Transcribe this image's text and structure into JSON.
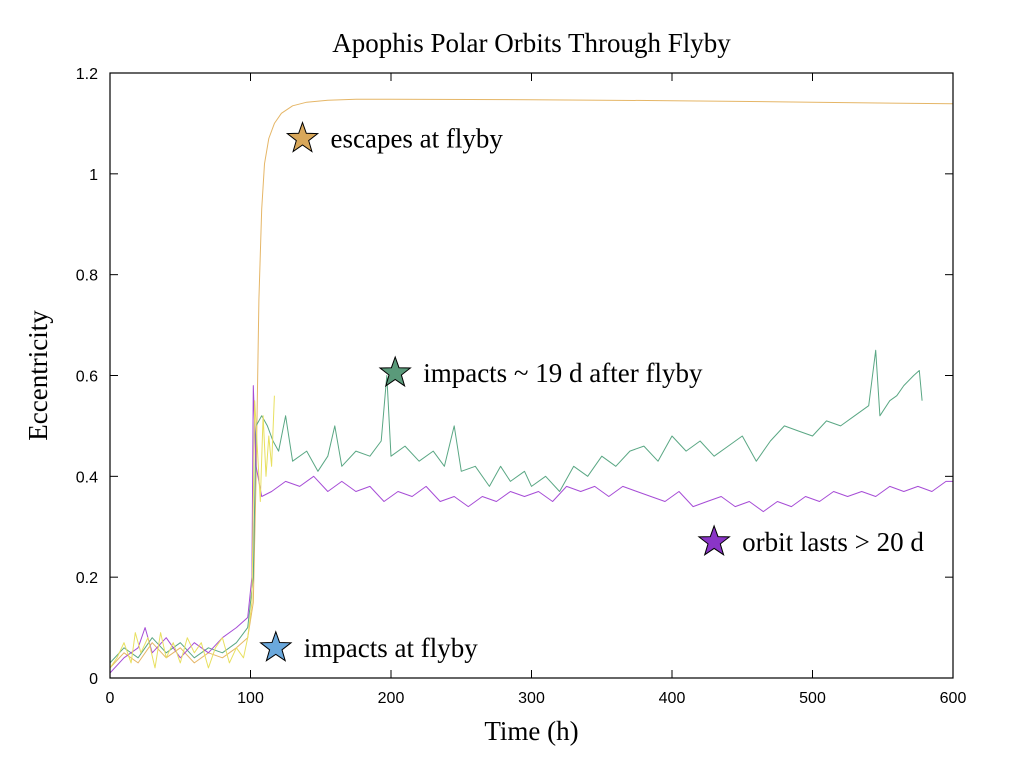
{
  "chart_data": {
    "type": "line",
    "title": "Apophis Polar Orbits Through Flyby",
    "xlabel": "Time (h)",
    "ylabel": "Eccentricity",
    "xlim": [
      0,
      600
    ],
    "ylim": [
      0,
      1.2
    ],
    "x_ticks": [
      0,
      100,
      200,
      300,
      400,
      500,
      600
    ],
    "x_tick_labels": [
      "0",
      "100",
      "200",
      "300",
      "400",
      "500",
      "600"
    ],
    "y_ticks": [
      0,
      0.2,
      0.4,
      0.6,
      0.8,
      1.0,
      1.2
    ],
    "y_tick_labels": [
      "0",
      "0.2",
      "0.4",
      "0.6",
      "0.8",
      "1",
      "1.2"
    ],
    "grid": false,
    "legend": "none",
    "series": [
      {
        "name": "escapes at flyby",
        "color": "#e5b667",
        "points": [
          [
            0,
            0.02
          ],
          [
            10,
            0.05
          ],
          [
            20,
            0.03
          ],
          [
            30,
            0.07
          ],
          [
            40,
            0.04
          ],
          [
            50,
            0.06
          ],
          [
            60,
            0.03
          ],
          [
            70,
            0.05
          ],
          [
            80,
            0.04
          ],
          [
            90,
            0.06
          ],
          [
            98,
            0.08
          ],
          [
            102,
            0.15
          ],
          [
            104,
            0.4
          ],
          [
            106,
            0.75
          ],
          [
            108,
            0.93
          ],
          [
            110,
            1.02
          ],
          [
            113,
            1.07
          ],
          [
            117,
            1.1
          ],
          [
            122,
            1.12
          ],
          [
            130,
            1.135
          ],
          [
            140,
            1.142
          ],
          [
            155,
            1.146
          ],
          [
            175,
            1.148
          ],
          [
            200,
            1.148
          ],
          [
            300,
            1.147
          ],
          [
            400,
            1.145
          ],
          [
            500,
            1.142
          ],
          [
            600,
            1.139
          ]
        ]
      },
      {
        "name": "impacts ~ 19 d after flyby",
        "color": "#5aa784",
        "points": [
          [
            0,
            0.03
          ],
          [
            10,
            0.06
          ],
          [
            20,
            0.04
          ],
          [
            30,
            0.08
          ],
          [
            40,
            0.05
          ],
          [
            50,
            0.07
          ],
          [
            60,
            0.04
          ],
          [
            70,
            0.06
          ],
          [
            80,
            0.05
          ],
          [
            90,
            0.07
          ],
          [
            98,
            0.1
          ],
          [
            102,
            0.2
          ],
          [
            104,
            0.5
          ],
          [
            108,
            0.52
          ],
          [
            112,
            0.5
          ],
          [
            116,
            0.47
          ],
          [
            120,
            0.45
          ],
          [
            125,
            0.52
          ],
          [
            130,
            0.43
          ],
          [
            140,
            0.45
          ],
          [
            148,
            0.41
          ],
          [
            155,
            0.44
          ],
          [
            160,
            0.5
          ],
          [
            165,
            0.42
          ],
          [
            175,
            0.45
          ],
          [
            185,
            0.44
          ],
          [
            193,
            0.47
          ],
          [
            197,
            0.6
          ],
          [
            200,
            0.44
          ],
          [
            210,
            0.46
          ],
          [
            220,
            0.43
          ],
          [
            230,
            0.45
          ],
          [
            238,
            0.42
          ],
          [
            245,
            0.5
          ],
          [
            250,
            0.41
          ],
          [
            260,
            0.42
          ],
          [
            270,
            0.38
          ],
          [
            278,
            0.42
          ],
          [
            285,
            0.39
          ],
          [
            295,
            0.41
          ],
          [
            300,
            0.38
          ],
          [
            310,
            0.4
          ],
          [
            320,
            0.37
          ],
          [
            330,
            0.42
          ],
          [
            340,
            0.4
          ],
          [
            350,
            0.44
          ],
          [
            360,
            0.42
          ],
          [
            370,
            0.45
          ],
          [
            380,
            0.46
          ],
          [
            390,
            0.43
          ],
          [
            400,
            0.48
          ],
          [
            410,
            0.45
          ],
          [
            420,
            0.47
          ],
          [
            430,
            0.44
          ],
          [
            440,
            0.46
          ],
          [
            450,
            0.48
          ],
          [
            460,
            0.43
          ],
          [
            470,
            0.47
          ],
          [
            480,
            0.5
          ],
          [
            490,
            0.49
          ],
          [
            500,
            0.48
          ],
          [
            510,
            0.51
          ],
          [
            520,
            0.5
          ],
          [
            530,
            0.52
          ],
          [
            540,
            0.54
          ],
          [
            545,
            0.65
          ],
          [
            548,
            0.52
          ],
          [
            555,
            0.55
          ],
          [
            560,
            0.56
          ],
          [
            565,
            0.58
          ],
          [
            572,
            0.6
          ],
          [
            576,
            0.61
          ],
          [
            578,
            0.55
          ]
        ]
      },
      {
        "name": "orbit lasts > 20 d",
        "color": "#a64cd6",
        "points": [
          [
            0,
            0.01
          ],
          [
            10,
            0.04
          ],
          [
            20,
            0.06
          ],
          [
            25,
            0.1
          ],
          [
            30,
            0.05
          ],
          [
            40,
            0.08
          ],
          [
            50,
            0.04
          ],
          [
            60,
            0.07
          ],
          [
            70,
            0.05
          ],
          [
            80,
            0.08
          ],
          [
            90,
            0.1
          ],
          [
            98,
            0.12
          ],
          [
            101,
            0.2
          ],
          [
            102,
            0.58
          ],
          [
            104,
            0.42
          ],
          [
            108,
            0.36
          ],
          [
            115,
            0.37
          ],
          [
            125,
            0.39
          ],
          [
            135,
            0.38
          ],
          [
            145,
            0.4
          ],
          [
            155,
            0.37
          ],
          [
            165,
            0.39
          ],
          [
            175,
            0.37
          ],
          [
            185,
            0.38
          ],
          [
            195,
            0.35
          ],
          [
            205,
            0.37
          ],
          [
            215,
            0.36
          ],
          [
            225,
            0.38
          ],
          [
            235,
            0.35
          ],
          [
            245,
            0.36
          ],
          [
            255,
            0.34
          ],
          [
            265,
            0.36
          ],
          [
            275,
            0.35
          ],
          [
            285,
            0.37
          ],
          [
            295,
            0.36
          ],
          [
            305,
            0.37
          ],
          [
            315,
            0.35
          ],
          [
            325,
            0.38
          ],
          [
            335,
            0.37
          ],
          [
            345,
            0.38
          ],
          [
            355,
            0.36
          ],
          [
            365,
            0.38
          ],
          [
            375,
            0.37
          ],
          [
            385,
            0.36
          ],
          [
            395,
            0.35
          ],
          [
            405,
            0.37
          ],
          [
            415,
            0.34
          ],
          [
            425,
            0.35
          ],
          [
            435,
            0.36
          ],
          [
            445,
            0.34
          ],
          [
            455,
            0.35
          ],
          [
            465,
            0.33
          ],
          [
            475,
            0.35
          ],
          [
            485,
            0.34
          ],
          [
            495,
            0.36
          ],
          [
            505,
            0.35
          ],
          [
            515,
            0.37
          ],
          [
            525,
            0.36
          ],
          [
            535,
            0.37
          ],
          [
            545,
            0.36
          ],
          [
            555,
            0.38
          ],
          [
            565,
            0.37
          ],
          [
            575,
            0.38
          ],
          [
            585,
            0.37
          ],
          [
            595,
            0.39
          ],
          [
            600,
            0.39
          ]
        ]
      },
      {
        "name": "impacts at flyby",
        "color": "#e8e060",
        "points": [
          [
            0,
            0.02
          ],
          [
            5,
            0.04
          ],
          [
            10,
            0.07
          ],
          [
            15,
            0.03
          ],
          [
            18,
            0.09
          ],
          [
            22,
            0.05
          ],
          [
            27,
            0.08
          ],
          [
            32,
            0.02
          ],
          [
            36,
            0.09
          ],
          [
            40,
            0.04
          ],
          [
            45,
            0.07
          ],
          [
            50,
            0.03
          ],
          [
            55,
            0.08
          ],
          [
            60,
            0.05
          ],
          [
            65,
            0.07
          ],
          [
            70,
            0.02
          ],
          [
            75,
            0.06
          ],
          [
            80,
            0.08
          ],
          [
            85,
            0.03
          ],
          [
            90,
            0.06
          ],
          [
            95,
            0.04
          ],
          [
            98,
            0.08
          ],
          [
            101,
            0.15
          ],
          [
            103,
            0.55
          ],
          [
            105,
            0.45
          ],
          [
            107,
            0.35
          ],
          [
            109,
            0.52
          ],
          [
            111,
            0.4
          ],
          [
            113,
            0.48
          ],
          [
            115,
            0.42
          ],
          [
            117,
            0.56
          ]
        ]
      }
    ],
    "annotations": [
      {
        "text": "escapes at flyby",
        "x": 137,
        "y": 1.07,
        "star_color": "#d8a75a"
      },
      {
        "text": "impacts ~ 19 d after flyby",
        "x": 203,
        "y": 0.605,
        "star_color": "#5a9a7a"
      },
      {
        "text": "orbit lasts > 20 d",
        "x": 430,
        "y": 0.27,
        "star_color": "#8a35c7"
      },
      {
        "text": "impacts at flyby",
        "x": 118,
        "y": 0.06,
        "star_color": "#6aa8dc"
      }
    ]
  }
}
